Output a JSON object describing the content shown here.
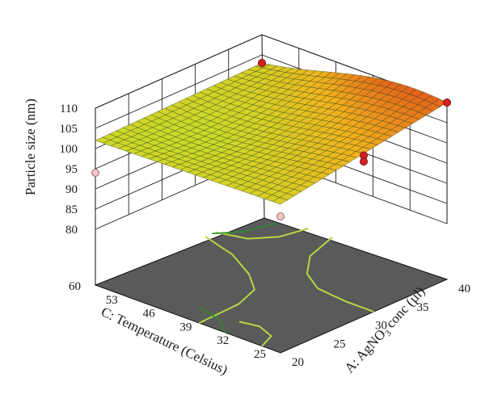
{
  "chart_data": {
    "type": "surface",
    "zlabel": "Particle size (nm)",
    "z_ticks": [
      "80",
      "85",
      "90",
      "95",
      "100",
      "105",
      "110"
    ],
    "zlim": [
      80,
      110
    ],
    "a_axis": {
      "label_prefix": "A: AgNO",
      "label_sub": "3",
      "label_suffix": " conc (µl)",
      "ticks": [
        "20",
        "25",
        "30",
        "35",
        "40"
      ],
      "range": [
        20,
        40
      ]
    },
    "c_axis": {
      "label": "C: Temperature (Celsius)",
      "ticks": [
        "25",
        "32",
        "39",
        "46",
        "53",
        "60"
      ],
      "range": [
        25,
        60
      ]
    },
    "surface_corners": [
      {
        "A": 40,
        "C": 60,
        "size": 103
      },
      {
        "A": 40,
        "C": 25,
        "size": 110
      },
      {
        "A": 20,
        "C": 25,
        "size": 103
      },
      {
        "A": 20,
        "C": 60,
        "size": 102
      }
    ],
    "design_points": [
      {
        "A": 40,
        "C": 60,
        "size": 103,
        "above_surface": true
      },
      {
        "A": 40,
        "C": 25,
        "size": 110,
        "above_surface": true
      },
      {
        "A": 30,
        "C": 25,
        "size": 106,
        "above_surface": true
      },
      {
        "A": 30,
        "C": 25,
        "size": 104.5,
        "above_surface": true
      },
      {
        "A": 20,
        "C": 25,
        "size": 100,
        "above_surface": false
      },
      {
        "A": 20,
        "C": 60,
        "size": 94,
        "above_surface": false
      }
    ],
    "colormap": [
      "#1f7a1f",
      "#5fb02c",
      "#c8dc2a",
      "#f0b21e",
      "#e0541a"
    ],
    "floor_color": "#5a5a5a",
    "contour_color": "#b5d642",
    "grid": true
  }
}
